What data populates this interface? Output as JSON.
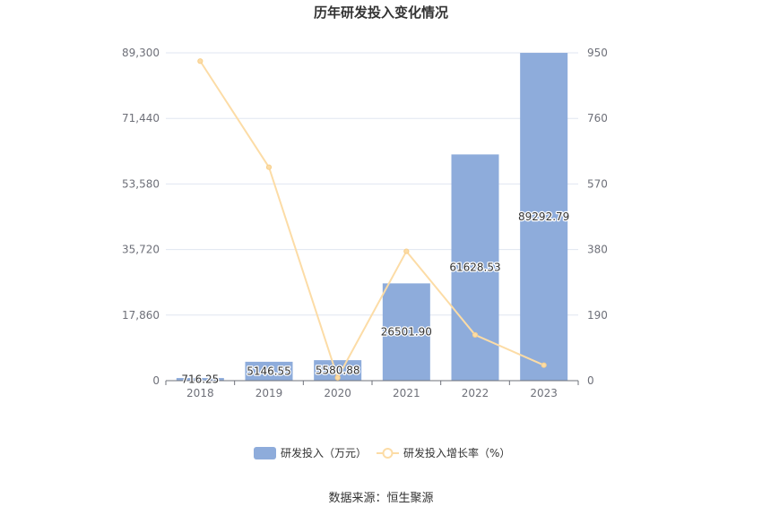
{
  "title": "历年研发投入变化情况",
  "source": "数据来源：恒生聚源",
  "chart_data": {
    "type": "bar",
    "title": "历年研发投入变化情况",
    "categories": [
      "2018",
      "2019",
      "2020",
      "2021",
      "2022",
      "2023"
    ],
    "series": [
      {
        "name": "研发投入（万元）",
        "type": "bar",
        "axis": "left",
        "color": "#8EACDB",
        "values": [
          716.25,
          5146.55,
          5580.88,
          26501.9,
          61628.53,
          89292.79
        ],
        "value_labels": [
          "716.25",
          "5146.55",
          "5580.88",
          "26501.90",
          "61628.53",
          "89292.79"
        ]
      },
      {
        "name": "研发投入增长率（%）",
        "type": "line",
        "axis": "right",
        "color": "#FCDCA6",
        "values": [
          926,
          618.55,
          8.44,
          374.87,
          132.55,
          44.89
        ]
      }
    ],
    "left_axis": {
      "range": [
        0,
        89300
      ],
      "ticks": [
        "0",
        "17,860",
        "35,720",
        "53,580",
        "71,440",
        "89,300"
      ]
    },
    "right_axis": {
      "range": [
        0,
        950
      ],
      "ticks": [
        "0",
        "190",
        "380",
        "570",
        "760",
        "950"
      ]
    },
    "grid": true,
    "legend": "bottom"
  }
}
